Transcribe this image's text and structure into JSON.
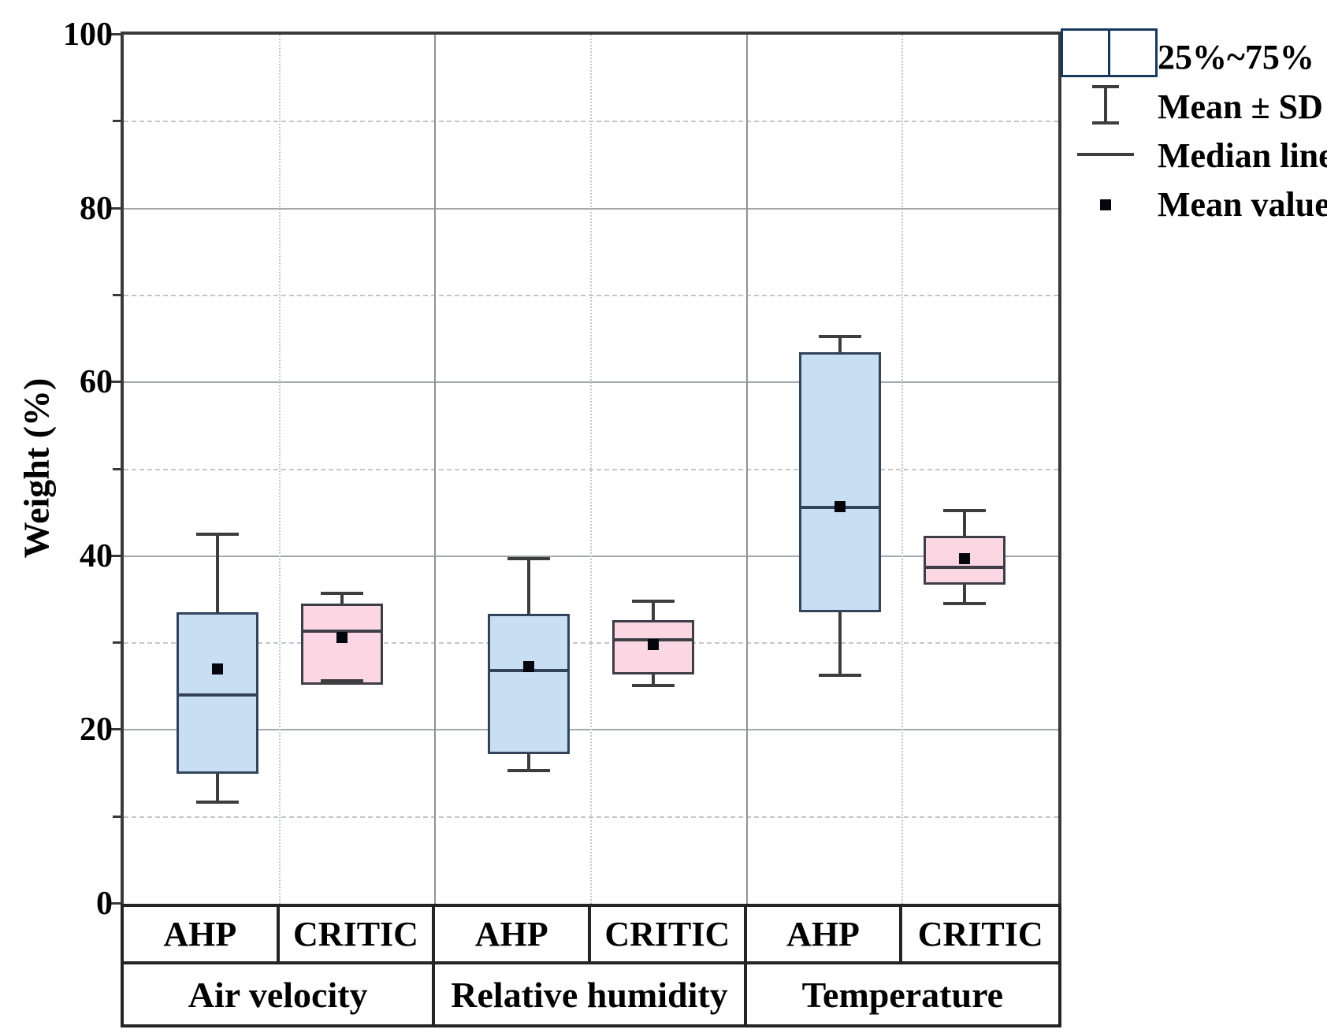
{
  "figure": {
    "y_axis_title": "Weight (%)",
    "legend": {
      "range_label": "25%~75%",
      "mean_sd_label": "Mean ± SD",
      "median_label": "Median line",
      "mean_value_label": "Mean value"
    },
    "colors": {
      "ahp_fill": "#c8def2",
      "critic_fill": "#fad7e2",
      "ahp_border": "#32435b",
      "critic_border": "#3e3e46",
      "swatch_border": "#17375e",
      "whisker": "#3d3d3d",
      "mean_marker": "#05050d",
      "grid_major": "#a4a8ad",
      "grid_minor": "#c3c7cb",
      "divider_solid": "#8e9296",
      "divider_dotted": "#c3c7cb",
      "frame": "#393939",
      "table_border": "#242424"
    }
  },
  "chart_data": {
    "type": "box",
    "title": "",
    "xlabel": "",
    "ylabel": "Weight (%)",
    "ylim": [
      0,
      100
    ],
    "y_major_ticks": [
      0,
      20,
      40,
      60,
      80,
      100
    ],
    "y_minor_ticks": [
      10,
      30,
      50,
      70,
      90
    ],
    "grid": "horizontal: solid at majors, dashed at minors; vertical: solid at group boundaries, dotted between methods",
    "legend_position": "top-right outside plot",
    "groups": [
      "Air velocity",
      "Relative humidity",
      "Temperature"
    ],
    "methods": [
      "AHP",
      "CRITIC"
    ],
    "whisker_meaning": "Mean ± SD",
    "box_meaning": "25%~75%",
    "series": [
      {
        "group": "Air velocity",
        "method": "AHP",
        "whisker_high": 42.5,
        "q3": 33.5,
        "mean": 27.0,
        "median": 24.0,
        "q1": 15.0,
        "whisker_low": 11.7
      },
      {
        "group": "Air velocity",
        "method": "CRITIC",
        "whisker_high": 35.7,
        "q3": 34.5,
        "mean": 30.6,
        "median": 31.4,
        "q1": 25.2,
        "whisker_low": 25.7
      },
      {
        "group": "Relative humidity",
        "method": "AHP",
        "whisker_high": 39.7,
        "q3": 33.4,
        "mean": 27.3,
        "median": 26.8,
        "q1": 17.2,
        "whisker_low": 15.3
      },
      {
        "group": "Relative humidity",
        "method": "CRITIC",
        "whisker_high": 34.8,
        "q3": 32.6,
        "mean": 29.8,
        "median": 30.4,
        "q1": 26.4,
        "whisker_low": 25.1
      },
      {
        "group": "Temperature",
        "method": "AHP",
        "whisker_high": 65.3,
        "q3": 63.5,
        "mean": 45.7,
        "median": 45.6,
        "q1": 33.5,
        "whisker_low": 26.3
      },
      {
        "group": "Temperature",
        "method": "CRITIC",
        "whisker_high": 45.2,
        "q3": 42.3,
        "mean": 39.7,
        "median": 38.7,
        "q1": 36.7,
        "whisker_low": 34.5
      }
    ]
  }
}
